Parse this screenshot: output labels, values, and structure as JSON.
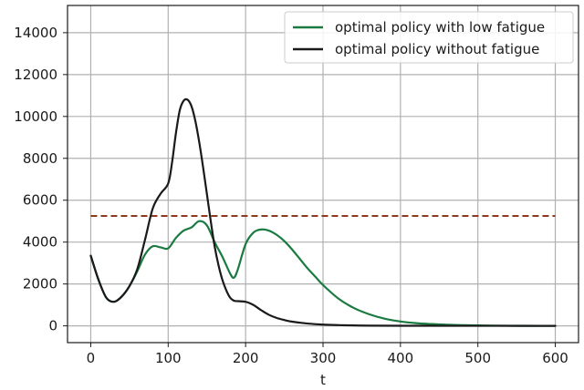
{
  "chart_data": {
    "type": "line",
    "title": "",
    "xlabel": "t",
    "ylabel": "",
    "xlim": [
      -30,
      630
    ],
    "ylim": [
      -800,
      15300
    ],
    "xticks": [
      0,
      100,
      200,
      300,
      400,
      500,
      600
    ],
    "yticks": [
      0,
      2000,
      4000,
      6000,
      8000,
      10000,
      12000,
      14000
    ],
    "xtick_labels": [
      "0",
      "100",
      "200",
      "300",
      "400",
      "500",
      "600"
    ],
    "ytick_labels": [
      "0",
      "2000",
      "4000",
      "6000",
      "8000",
      "10000",
      "12000",
      "14000"
    ],
    "grid": true,
    "legend_position": "top-right",
    "threshold": {
      "y": 5250,
      "x_range": [
        0,
        600
      ],
      "color": "#8b3a1e",
      "style": "dashed"
    },
    "series": [
      {
        "name": "optimal policy with low fatigue",
        "color": "#1a7a40",
        "x": [
          0,
          10,
          20,
          30,
          40,
          50,
          60,
          70,
          80,
          90,
          100,
          110,
          120,
          130,
          140,
          150,
          160,
          170,
          180,
          185,
          190,
          200,
          210,
          220,
          230,
          240,
          250,
          260,
          270,
          280,
          290,
          300,
          320,
          340,
          360,
          380,
          400,
          420,
          440,
          460,
          480,
          500,
          520,
          540,
          560,
          580,
          600
        ],
        "y": [
          3350,
          2200,
          1350,
          1150,
          1400,
          1900,
          2600,
          3400,
          3800,
          3750,
          3700,
          4200,
          4550,
          4700,
          5000,
          4800,
          4000,
          3300,
          2500,
          2300,
          2700,
          3900,
          4450,
          4600,
          4550,
          4350,
          4050,
          3650,
          3200,
          2750,
          2350,
          1950,
          1300,
          850,
          550,
          340,
          210,
          130,
          85,
          55,
          35,
          20,
          12,
          8,
          5,
          3,
          2
        ]
      },
      {
        "name": "optimal policy without fatigue",
        "color": "#1a1a1a",
        "x": [
          0,
          10,
          20,
          30,
          40,
          50,
          60,
          70,
          80,
          90,
          100,
          105,
          110,
          115,
          120,
          125,
          130,
          135,
          140,
          145,
          150,
          155,
          160,
          165,
          170,
          175,
          180,
          185,
          190,
          200,
          210,
          220,
          230,
          240,
          250,
          260,
          280,
          300,
          320,
          340,
          360,
          400,
          450,
          500,
          550,
          600
        ],
        "y": [
          3350,
          2200,
          1350,
          1150,
          1400,
          1900,
          2700,
          4100,
          5600,
          6300,
          6800,
          7800,
          9200,
          10300,
          10750,
          10800,
          10500,
          9800,
          8800,
          7600,
          6300,
          5000,
          3800,
          2900,
          2200,
          1700,
          1350,
          1200,
          1180,
          1150,
          1000,
          750,
          530,
          380,
          280,
          200,
          110,
          60,
          35,
          20,
          12,
          6,
          3,
          2,
          1,
          0
        ]
      }
    ]
  }
}
